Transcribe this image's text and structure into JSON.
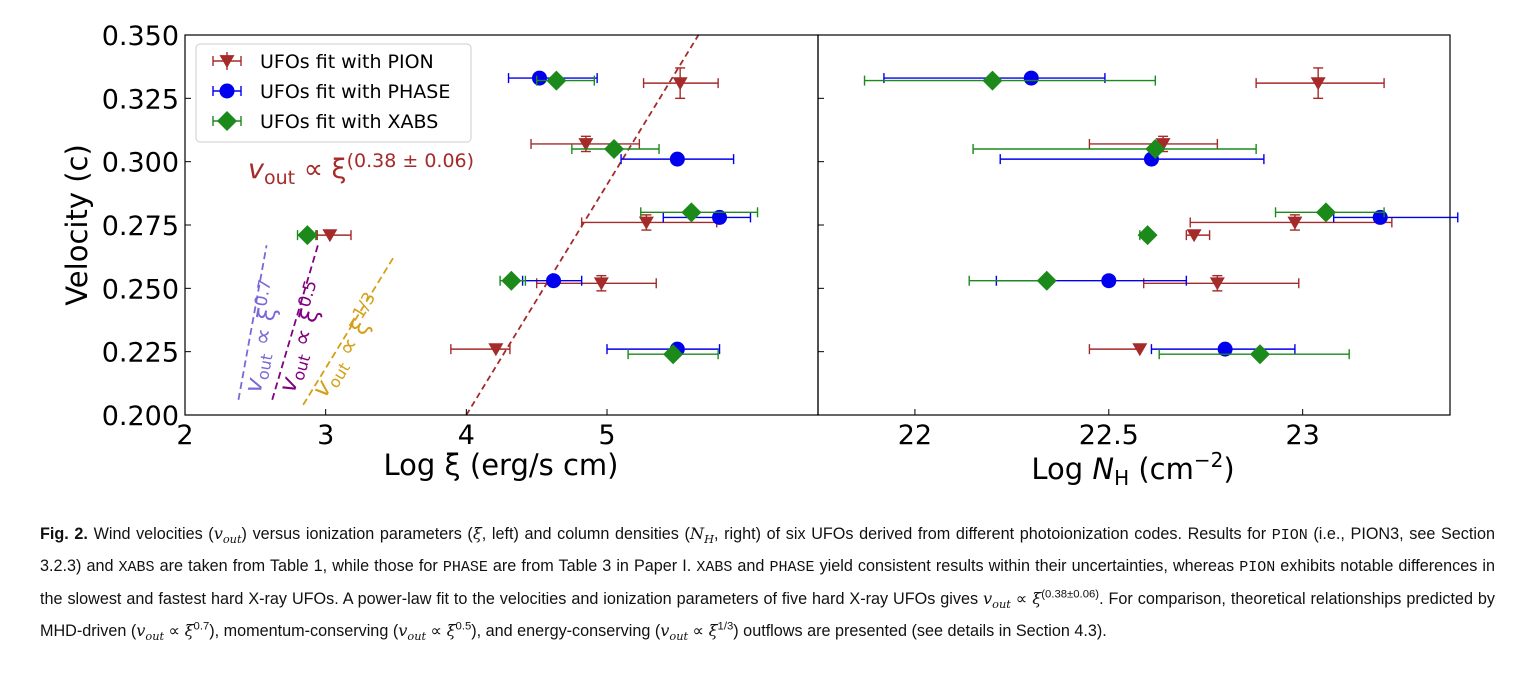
{
  "chart_data": [
    {
      "type": "scatter",
      "xlabel": "Log ξ (erg/s cm)",
      "ylabel": "Velocity (c)",
      "xlim": [
        2,
        6.5
      ],
      "ylim": [
        0.2,
        0.35
      ],
      "xticks": [
        2,
        3,
        4,
        5
      ],
      "yticks": [
        0.2,
        0.225,
        0.25,
        0.275,
        0.3,
        0.325,
        0.35
      ],
      "xtick_labels": [
        "2",
        "3",
        "4",
        "5"
      ],
      "ytick_labels": [
        "0.200",
        "0.225",
        "0.250",
        "0.275",
        "0.300",
        "0.325",
        "0.350"
      ],
      "grid": false,
      "legend_position": "upper-left",
      "series": [
        {
          "name": "UFOs fit with PION",
          "marker": "triangle-down",
          "color": "#a52a2a",
          "points": [
            {
              "x": 5.52,
              "y": 0.331,
              "xerr": [
                0.26,
                0.27
              ],
              "yerr": 0.006
            },
            {
              "x": 4.85,
              "y": 0.307,
              "xerr": [
                0.39,
                0.38
              ],
              "yerr": 0.003
            },
            {
              "x": 5.28,
              "y": 0.276,
              "xerr": [
                0.46,
                0.5
              ],
              "yerr": 0.003
            },
            {
              "x": 3.03,
              "y": 0.271,
              "xerr": [
                0.09,
                0.15
              ],
              "yerr": 0.0
            },
            {
              "x": 4.96,
              "y": 0.252,
              "xerr": [
                0.46,
                0.39
              ],
              "yerr": 0.003
            },
            {
              "x": 4.21,
              "y": 0.226,
              "xerr": [
                0.32,
                0.1
              ],
              "yerr": 0.0
            }
          ]
        },
        {
          "name": "UFOs fit with PHASE",
          "marker": "circle",
          "color": "#0000ee",
          "points": [
            {
              "x": 4.52,
              "y": 0.333,
              "xerr": [
                0.22,
                0.41
              ],
              "yerr": 0.0
            },
            {
              "x": 5.5,
              "y": 0.301,
              "xerr": [
                0.4,
                0.4
              ],
              "yerr": 0.0
            },
            {
              "x": 5.8,
              "y": 0.278,
              "xerr": [
                0.4,
                0.22
              ],
              "yerr": 0.0
            },
            {
              "x": 4.62,
              "y": 0.253,
              "xerr": [
                0.22,
                0.2
              ],
              "yerr": 0.0
            },
            {
              "x": 5.5,
              "y": 0.226,
              "xerr": [
                0.5,
                0.3
              ],
              "yerr": 0.0
            }
          ]
        },
        {
          "name": "UFOs fit with XABS",
          "marker": "diamond",
          "color": "#1b8a1b",
          "points": [
            {
              "x": 4.64,
              "y": 0.332,
              "xerr": [
                0.14,
                0.27
              ],
              "yerr": 0.0
            },
            {
              "x": 5.05,
              "y": 0.305,
              "xerr": [
                0.3,
                0.32
              ],
              "yerr": 0.0
            },
            {
              "x": 5.6,
              "y": 0.28,
              "xerr": [
                0.36,
                0.47
              ],
              "yerr": 0.0
            },
            {
              "x": 2.87,
              "y": 0.271,
              "xerr": [
                0.07,
                0.06
              ],
              "yerr": 0.0
            },
            {
              "x": 4.32,
              "y": 0.253,
              "xerr": [
                0.08,
                0.1
              ],
              "yerr": 0.0
            },
            {
              "x": 5.47,
              "y": 0.224,
              "xerr": [
                0.32,
                0.32
              ],
              "yerr": 0.0
            }
          ]
        }
      ],
      "fit_line": {
        "label": "vout ∝ ξ^(0.38 ± 0.06)",
        "label_main": "v",
        "label_sub": "out",
        "label_rel": " ∝ ξ",
        "label_exp": "(0.38 ± 0.06)",
        "color": "#a52a2a",
        "dash": "dashed",
        "points": [
          [
            4.0,
            0.2
          ],
          [
            5.65,
            0.35
          ]
        ]
      },
      "theory_lines": [
        {
          "label_main": "v",
          "label_sub": "out",
          "label_rel": " ∝ ξ",
          "label_exp": "0.7",
          "color": "#7b68d8",
          "points": [
            [
              2.38,
              0.206
            ],
            [
              2.58,
              0.267
            ]
          ]
        },
        {
          "label_main": "v",
          "label_sub": "out",
          "label_rel": " ∝ ξ",
          "label_exp": "0.5",
          "color": "#800080",
          "points": [
            [
              2.62,
              0.206
            ],
            [
              2.95,
              0.268
            ]
          ]
        },
        {
          "label_main": "v",
          "label_sub": "out",
          "label_rel": " ∝ ξ",
          "label_exp": "1/3",
          "color": "#d4a017",
          "points": [
            [
              2.84,
              0.204
            ],
            [
              3.48,
              0.262
            ]
          ]
        }
      ]
    },
    {
      "type": "scatter",
      "xlabel": "Log N_H (cm^-2)",
      "xlabel_main": "Log ",
      "xlabel_var": "N",
      "xlabel_sub": "H",
      "xlabel_unit": " (cm",
      "xlabel_exp": "−2",
      "xlabel_close": ")",
      "xlim": [
        21.75,
        23.38
      ],
      "ylim": [
        0.2,
        0.35
      ],
      "xticks": [
        22,
        22.5,
        23
      ],
      "xtick_labels": [
        "22",
        "22.5",
        "23"
      ],
      "grid": false,
      "series": [
        {
          "name": "UFOs fit with PION",
          "marker": "triangle-down",
          "color": "#a52a2a",
          "points": [
            {
              "x": 23.04,
              "y": 0.331,
              "xerr": [
                0.16,
                0.17
              ],
              "yerr": 0.006
            },
            {
              "x": 22.64,
              "y": 0.307,
              "xerr": [
                0.19,
                0.14
              ],
              "yerr": 0.003
            },
            {
              "x": 22.98,
              "y": 0.276,
              "xerr": [
                0.27,
                0.25
              ],
              "yerr": 0.003
            },
            {
              "x": 22.72,
              "y": 0.271,
              "xerr": [
                0.02,
                0.04
              ],
              "yerr": 0.0
            },
            {
              "x": 22.78,
              "y": 0.252,
              "xerr": [
                0.19,
                0.21
              ],
              "yerr": 0.003
            },
            {
              "x": 22.58,
              "y": 0.226,
              "xerr": [
                0.13,
                0.0
              ],
              "yerr": 0.0
            }
          ]
        },
        {
          "name": "UFOs fit with PHASE",
          "marker": "circle",
          "color": "#0000ee",
          "points": [
            {
              "x": 22.3,
              "y": 0.333,
              "xerr": [
                0.38,
                0.19
              ],
              "yerr": 0.0
            },
            {
              "x": 22.61,
              "y": 0.301,
              "xerr": [
                0.39,
                0.29
              ],
              "yerr": 0.0
            },
            {
              "x": 23.2,
              "y": 0.278,
              "xerr": [
                0.12,
                0.2
              ],
              "yerr": 0.0
            },
            {
              "x": 22.5,
              "y": 0.253,
              "xerr": [
                0.29,
                0.2
              ],
              "yerr": 0.0
            },
            {
              "x": 22.8,
              "y": 0.226,
              "xerr": [
                0.19,
                0.18
              ],
              "yerr": 0.0
            }
          ]
        },
        {
          "name": "UFOs fit with XABS",
          "marker": "diamond",
          "color": "#1b8a1b",
          "points": [
            {
              "x": 22.2,
              "y": 0.332,
              "xerr": [
                0.33,
                0.42
              ],
              "yerr": 0.0
            },
            {
              "x": 22.62,
              "y": 0.305,
              "xerr": [
                0.47,
                0.26
              ],
              "yerr": 0.0
            },
            {
              "x": 23.06,
              "y": 0.28,
              "xerr": [
                0.13,
                0.15
              ],
              "yerr": 0.0
            },
            {
              "x": 22.6,
              "y": 0.271,
              "xerr": [
                0.02,
                0.0
              ],
              "yerr": 0.0
            },
            {
              "x": 22.34,
              "y": 0.253,
              "xerr": [
                0.2,
                0.0
              ],
              "yerr": 0.0
            },
            {
              "x": 22.89,
              "y": 0.224,
              "xerr": [
                0.26,
                0.23
              ],
              "yerr": 0.0
            }
          ]
        }
      ]
    }
  ],
  "caption": {
    "fig_label": "Fig. 2.",
    "t1": " Wind velocities (",
    "t2": ") versus ionization parameters (",
    "t3": ", left) and column densities (",
    "t4": ", right) of six UFOs derived from different photoionization codes. Results for ",
    "code_pion": "PION",
    "t5": " (i.e., PION3, see Section 3.2.3) and ",
    "code_xabs": "XABS",
    "t6": " are taken from Table 1, while those for ",
    "code_phase": "PHASE",
    "t7": " are from Table 3 in Paper I. ",
    "t8": " and ",
    "t9": " yield consistent results within their uncertainties, whereas ",
    "t10": " exhibits notable differences in the slowest and fastest hard X-ray UFOs. A power-law fit to the velocities and ionization parameters of five hard X-ray UFOs gives ",
    "fit_exp": "(0.38±0.06)",
    "t11": ". For comparison, theoretical relationships predicted by MHD-driven (",
    "exp_mhd": "0.7",
    "t12": "), momentum-conserving (",
    "exp_mom": "0.5",
    "t13": "), and energy-conserving (",
    "exp_en": "1/3",
    "t14": ") outflows are presented (see details in Section 4.3).",
    "sym_v": "v",
    "sym_out": "out",
    "sym_xi": "ξ",
    "sym_N": "N",
    "sym_H": "H",
    "sym_prop": " ∝ "
  }
}
